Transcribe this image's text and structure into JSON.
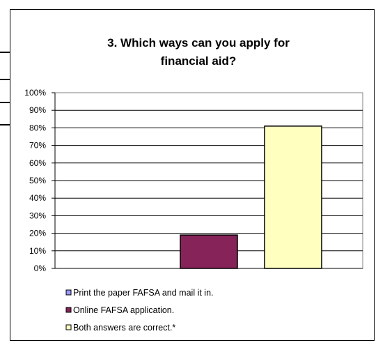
{
  "chart_data": {
    "type": "bar",
    "title_lines": [
      "3. Which ways can you apply for",
      "financial aid?"
    ],
    "y_ticks": [
      "0%",
      "10%",
      "20%",
      "30%",
      "40%",
      "50%",
      "60%",
      "70%",
      "80%",
      "90%",
      "100%"
    ],
    "ylim": [
      0,
      100
    ],
    "grid": true,
    "legend_position": "bottom",
    "series": [
      {
        "name": "Print the paper FAFSA and mail it in.",
        "value": 0,
        "color": "#9999ff"
      },
      {
        "name": "Online FAFSA application.",
        "value": 19,
        "color": "#862358"
      },
      {
        "name": "Both answers are correct.*",
        "value": 81,
        "color": "#ffffc0"
      }
    ]
  }
}
